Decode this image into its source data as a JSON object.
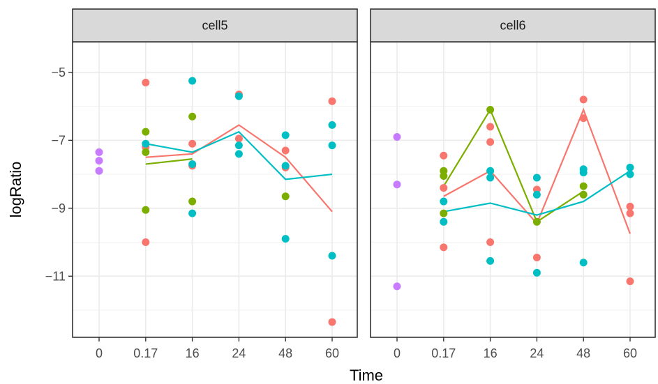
{
  "chart_data": {
    "type": "scatter",
    "xlabel": "Time",
    "ylabel": "logRatio",
    "x_categories": [
      "0",
      "0.17",
      "16",
      "24",
      "48",
      "60"
    ],
    "y_ticks": [
      -5,
      -7,
      -9,
      -11
    ],
    "ylim": [
      -12.8,
      -4.1
    ],
    "grid": true,
    "colors": {
      "red": "#F8766D",
      "green": "#7CAE00",
      "cyan": "#00BFC4",
      "purple": "#C77CFF"
    },
    "panels": [
      {
        "strip": "cell5",
        "points": [
          {
            "x": "0",
            "y": -7.35,
            "color": "purple"
          },
          {
            "x": "0",
            "y": -7.6,
            "color": "purple"
          },
          {
            "x": "0",
            "y": -7.9,
            "color": "purple"
          },
          {
            "x": "0.17",
            "y": -5.3,
            "color": "red"
          },
          {
            "x": "0.17",
            "y": -7.2,
            "color": "red"
          },
          {
            "x": "0.17",
            "y": -10.0,
            "color": "red"
          },
          {
            "x": "0.17",
            "y": -6.75,
            "color": "green"
          },
          {
            "x": "0.17",
            "y": -7.35,
            "color": "green"
          },
          {
            "x": "0.17",
            "y": -9.05,
            "color": "green"
          },
          {
            "x": "0.17",
            "y": -7.1,
            "color": "cyan"
          },
          {
            "x": "16",
            "y": -7.1,
            "color": "red"
          },
          {
            "x": "16",
            "y": -7.75,
            "color": "red"
          },
          {
            "x": "16",
            "y": -6.3,
            "color": "green"
          },
          {
            "x": "16",
            "y": -8.8,
            "color": "green"
          },
          {
            "x": "16",
            "y": -5.25,
            "color": "cyan"
          },
          {
            "x": "16",
            "y": -7.7,
            "color": "cyan"
          },
          {
            "x": "16",
            "y": -9.15,
            "color": "cyan"
          },
          {
            "x": "24",
            "y": -5.65,
            "color": "red"
          },
          {
            "x": "24",
            "y": -6.95,
            "color": "red"
          },
          {
            "x": "24",
            "y": -5.7,
            "color": "cyan"
          },
          {
            "x": "24",
            "y": -7.15,
            "color": "cyan"
          },
          {
            "x": "24",
            "y": -7.4,
            "color": "cyan"
          },
          {
            "x": "48",
            "y": -7.3,
            "color": "red"
          },
          {
            "x": "48",
            "y": -7.8,
            "color": "red"
          },
          {
            "x": "48",
            "y": -8.65,
            "color": "green"
          },
          {
            "x": "48",
            "y": -6.85,
            "color": "cyan"
          },
          {
            "x": "48",
            "y": -7.75,
            "color": "cyan"
          },
          {
            "x": "48",
            "y": -9.9,
            "color": "cyan"
          },
          {
            "x": "60",
            "y": -5.85,
            "color": "red"
          },
          {
            "x": "60",
            "y": -12.35,
            "color": "red"
          },
          {
            "x": "60",
            "y": -6.55,
            "color": "cyan"
          },
          {
            "x": "60",
            "y": -7.15,
            "color": "cyan"
          },
          {
            "x": "60",
            "y": -10.4,
            "color": "cyan"
          }
        ],
        "lines": [
          {
            "color": "red",
            "values": [
              {
                "x": "0.17",
                "y": -7.5
              },
              {
                "x": "16",
                "y": -7.4
              },
              {
                "x": "24",
                "y": -6.55
              },
              {
                "x": "48",
                "y": -7.5
              },
              {
                "x": "60",
                "y": -9.1
              }
            ]
          },
          {
            "color": "green",
            "values": [
              {
                "x": "0.17",
                "y": -7.7
              },
              {
                "x": "16",
                "y": -7.55
              }
            ]
          },
          {
            "color": "cyan",
            "values": [
              {
                "x": "0.17",
                "y": -7.1
              },
              {
                "x": "16",
                "y": -7.35
              },
              {
                "x": "24",
                "y": -6.75
              },
              {
                "x": "48",
                "y": -8.15
              },
              {
                "x": "60",
                "y": -8.0
              }
            ]
          }
        ]
      },
      {
        "strip": "cell6",
        "points": [
          {
            "x": "0",
            "y": -6.9,
            "color": "purple"
          },
          {
            "x": "0",
            "y": -8.3,
            "color": "purple"
          },
          {
            "x": "0",
            "y": -11.3,
            "color": "purple"
          },
          {
            "x": "0.17",
            "y": -7.45,
            "color": "red"
          },
          {
            "x": "0.17",
            "y": -8.4,
            "color": "red"
          },
          {
            "x": "0.17",
            "y": -10.15,
            "color": "red"
          },
          {
            "x": "0.17",
            "y": -7.9,
            "color": "green"
          },
          {
            "x": "0.17",
            "y": -8.05,
            "color": "green"
          },
          {
            "x": "0.17",
            "y": -9.15,
            "color": "green"
          },
          {
            "x": "0.17",
            "y": -8.8,
            "color": "cyan"
          },
          {
            "x": "0.17",
            "y": -9.4,
            "color": "cyan"
          },
          {
            "x": "16",
            "y": -6.6,
            "color": "red"
          },
          {
            "x": "16",
            "y": -7.05,
            "color": "red"
          },
          {
            "x": "16",
            "y": -10.0,
            "color": "red"
          },
          {
            "x": "16",
            "y": -6.1,
            "color": "green"
          },
          {
            "x": "16",
            "y": -7.9,
            "color": "cyan"
          },
          {
            "x": "16",
            "y": -8.1,
            "color": "cyan"
          },
          {
            "x": "16",
            "y": -10.55,
            "color": "cyan"
          },
          {
            "x": "24",
            "y": -8.45,
            "color": "red"
          },
          {
            "x": "24",
            "y": -10.45,
            "color": "red"
          },
          {
            "x": "24",
            "y": -9.4,
            "color": "green"
          },
          {
            "x": "24",
            "y": -8.1,
            "color": "cyan"
          },
          {
            "x": "24",
            "y": -8.6,
            "color": "cyan"
          },
          {
            "x": "24",
            "y": -10.9,
            "color": "cyan"
          },
          {
            "x": "48",
            "y": -5.8,
            "color": "red"
          },
          {
            "x": "48",
            "y": -6.35,
            "color": "red"
          },
          {
            "x": "48",
            "y": -8.35,
            "color": "green"
          },
          {
            "x": "48",
            "y": -8.6,
            "color": "green"
          },
          {
            "x": "48",
            "y": -7.85,
            "color": "cyan"
          },
          {
            "x": "48",
            "y": -7.95,
            "color": "cyan"
          },
          {
            "x": "48",
            "y": -10.6,
            "color": "cyan"
          },
          {
            "x": "60",
            "y": -8.95,
            "color": "red"
          },
          {
            "x": "60",
            "y": -9.15,
            "color": "red"
          },
          {
            "x": "60",
            "y": -11.15,
            "color": "red"
          },
          {
            "x": "60",
            "y": -7.8,
            "color": "cyan"
          },
          {
            "x": "60",
            "y": -8.0,
            "color": "cyan"
          }
        ],
        "lines": [
          {
            "color": "red",
            "values": [
              {
                "x": "0.17",
                "y": -8.65
              },
              {
                "x": "16",
                "y": -7.9
              },
              {
                "x": "24",
                "y": -9.45
              },
              {
                "x": "48",
                "y": -6.1
              },
              {
                "x": "60",
                "y": -9.75
              }
            ]
          },
          {
            "color": "green",
            "values": [
              {
                "x": "0.17",
                "y": -8.35
              },
              {
                "x": "16",
                "y": -6.1
              },
              {
                "x": "24",
                "y": -9.4
              },
              {
                "x": "48",
                "y": -8.5
              }
            ]
          },
          {
            "color": "cyan",
            "values": [
              {
                "x": "0.17",
                "y": -9.1
              },
              {
                "x": "16",
                "y": -8.85
              },
              {
                "x": "24",
                "y": -9.2
              },
              {
                "x": "48",
                "y": -8.8
              },
              {
                "x": "60",
                "y": -7.9
              }
            ]
          }
        ]
      }
    ]
  }
}
